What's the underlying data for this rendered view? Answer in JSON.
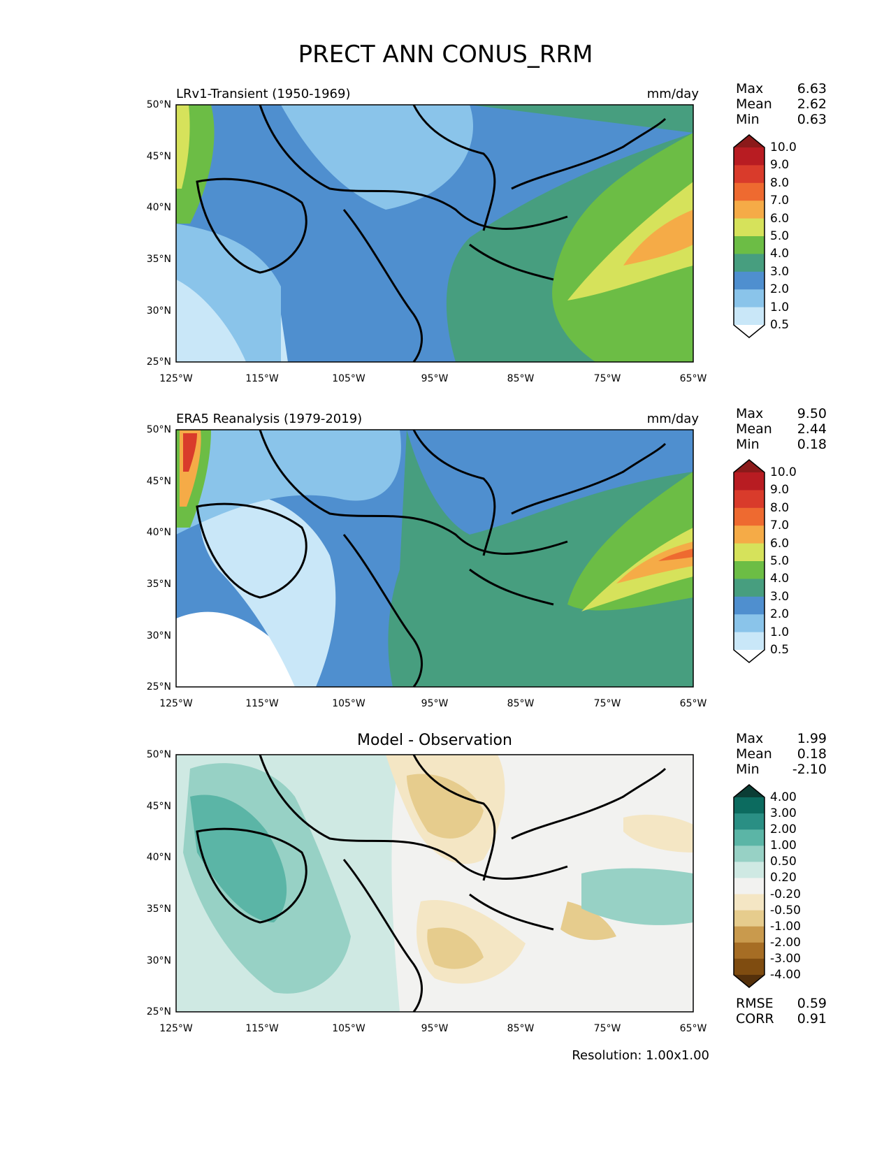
{
  "title": "PRECT ANN CONUS_RRM",
  "panels": [
    {
      "title": "LRv1-Transient (1950-1969)",
      "units": "mm/day",
      "stats": {
        "max_label": "Max",
        "max": "6.63",
        "mean_label": "Mean",
        "mean": "2.62",
        "min_label": "Min",
        "min": "0.63"
      }
    },
    {
      "title": "ERA5 Reanalysis (1979-2019)",
      "units": "mm/day",
      "stats": {
        "max_label": "Max",
        "max": "9.50",
        "mean_label": "Mean",
        "mean": "2.44",
        "min_label": "Min",
        "min": "0.18"
      }
    },
    {
      "title": "Model - Observation",
      "stats": {
        "max_label": "Max",
        "max": "1.99",
        "mean_label": "Mean",
        "mean": "0.18",
        "min_label": "Min",
        "min": "-2.10"
      }
    }
  ],
  "axes": {
    "lat_ticks": [
      "50°N",
      "45°N",
      "40°N",
      "35°N",
      "30°N",
      "25°N"
    ],
    "lon_ticks": [
      "125°W",
      "115°W",
      "105°W",
      "95°W",
      "85°W",
      "75°W",
      "65°W"
    ]
  },
  "colorbars": {
    "precip": {
      "labels": [
        "10.0",
        "9.0",
        "8.0",
        "7.0",
        "6.0",
        "5.0",
        "4.0",
        "3.0",
        "2.0",
        "1.0",
        "0.5"
      ],
      "colors": [
        "#8b1a1a",
        "#b81c22",
        "#d93b2b",
        "#ee6a30",
        "#f5ab47",
        "#d6e25b",
        "#6cbd45",
        "#479e7f",
        "#4f8fcf",
        "#8ac4ea",
        "#c9e7f8",
        "#ffffff"
      ]
    },
    "diff": {
      "labels": [
        "4.00",
        "3.00",
        "2.00",
        "1.00",
        "0.50",
        "0.20",
        "-0.20",
        "-0.50",
        "-1.00",
        "-2.00",
        "-3.00",
        "-4.00"
      ],
      "colors": [
        "#0b3d35",
        "#0c6b5f",
        "#2a8f84",
        "#5bb5a6",
        "#97d1c5",
        "#cfe9e3",
        "#f2f2f0",
        "#f4e6c4",
        "#e6cc8d",
        "#c99a4d",
        "#a66d24",
        "#7f4c10",
        "#54300b"
      ]
    }
  },
  "scores": {
    "rmse_label": "RMSE",
    "rmse": "0.59",
    "corr_label": "CORR",
    "corr": "0.91"
  },
  "resolution": "Resolution: 1.00x1.00"
}
